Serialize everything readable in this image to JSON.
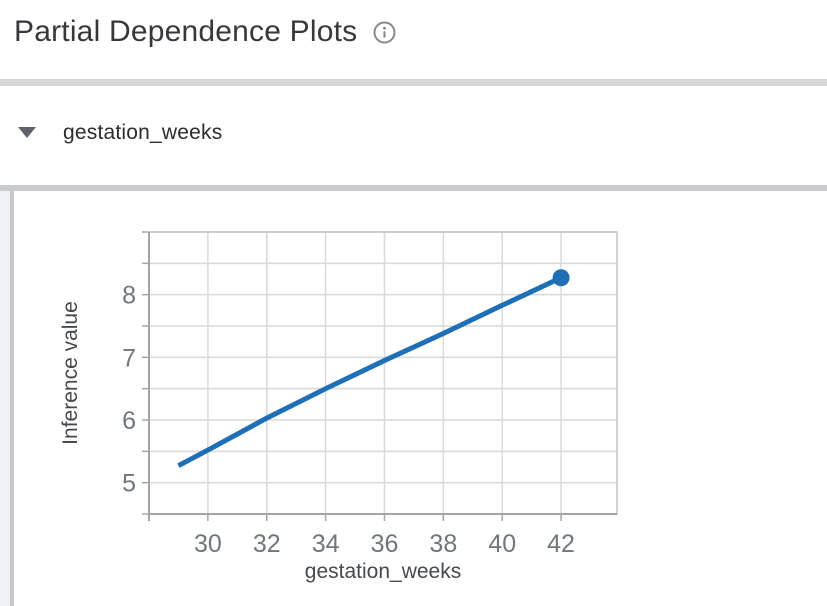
{
  "header": {
    "title": "Partial Dependence Plots",
    "info_icon": "info-circle-icon"
  },
  "feature_section": {
    "label": "gestation_weeks",
    "collapse_icon": "triangle-down-icon",
    "expanded": true
  },
  "chart_data": {
    "type": "line",
    "title": "",
    "xlabel": "gestation_weeks",
    "ylabel": "Inference value",
    "x": [
      29,
      30,
      32,
      34,
      36,
      38,
      40,
      42
    ],
    "y": [
      5.27,
      5.52,
      6.03,
      6.5,
      6.95,
      7.38,
      7.83,
      8.27
    ],
    "xlim": [
      28,
      43.9
    ],
    "ylim": [
      4.5,
      9.0
    ],
    "x_ticks": [
      30,
      32,
      34,
      36,
      38,
      40,
      42
    ],
    "y_ticks": [
      5,
      6,
      7,
      8
    ],
    "y_grid_step": 0.5,
    "grid": true,
    "legend_position": "none",
    "end_dot": {
      "x": 42,
      "y": 8.27,
      "radius": 8.5
    }
  },
  "colors": {
    "line": "#1f6fb6",
    "grid": "#d9d9d9",
    "plot_border": "#c4c4c6",
    "axis": "#a5a5a8",
    "tick_label": "#71767c",
    "axis_title": "#45484c",
    "icon_gray": "#85898d"
  }
}
